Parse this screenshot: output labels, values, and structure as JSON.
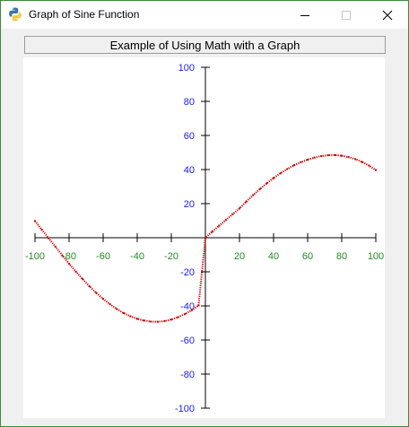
{
  "window": {
    "title": "Graph of Sine Function",
    "minimize_icon": "minimize-icon",
    "maximize_icon": "maximize-icon",
    "close_icon": "close-icon",
    "app_icon": "python-icon"
  },
  "caption": "Example of Using Math with a Graph",
  "colors": {
    "curve": "#cc0000",
    "x_tick_labels": "#228b22",
    "y_tick_labels": "#1a1aff",
    "axes": "#000000"
  },
  "chart_data": {
    "type": "scatter",
    "title": "",
    "xlabel": "",
    "ylabel": "",
    "xlim": [
      -100,
      100
    ],
    "ylim": [
      -100,
      100
    ],
    "x_ticks": [
      "-100",
      "-80",
      "-60",
      "-40",
      "-20",
      "20",
      "40",
      "60",
      "80",
      "100"
    ],
    "y_ticks": [
      "100",
      "80",
      "60",
      "40",
      "20",
      "-20",
      "-40",
      "-60",
      "-80",
      "-100"
    ],
    "grid": false,
    "series": [
      {
        "x": [
          -100,
          -96,
          -92,
          -88,
          -84,
          -80,
          -76,
          -72,
          -68,
          -64,
          -60,
          -56,
          -52,
          -48,
          -44,
          -40,
          -36,
          -32,
          -28,
          -24,
          -20,
          -16,
          -12,
          -8,
          -4,
          0,
          4,
          8,
          12,
          16,
          20,
          24,
          28,
          32,
          36,
          40,
          44,
          48,
          52,
          56,
          60,
          64,
          68,
          72,
          76,
          80,
          84,
          88,
          92,
          96,
          100
        ],
        "y": [
          9.8,
          4.7,
          -0.3,
          -5.3,
          -10.4,
          -15.2,
          -19.9,
          -24.3,
          -28.5,
          -32.4,
          -35.9,
          -39.0,
          -41.8,
          -44.2,
          -46.1,
          -47.6,
          -48.6,
          -49.2,
          -49.3,
          -48.9,
          -48.0,
          -46.6,
          -44.8,
          -42.5,
          -39.7,
          0.0,
          3.5,
          7.0,
          10.4,
          13.8,
          17.2,
          21.2,
          25.0,
          28.6,
          31.9,
          35.0,
          37.8,
          40.3,
          42.5,
          44.3,
          45.8,
          47.0,
          47.9,
          48.4,
          48.5,
          48.1,
          47.3,
          46.1,
          44.4,
          42.3,
          39.7
        ]
      }
    ]
  }
}
